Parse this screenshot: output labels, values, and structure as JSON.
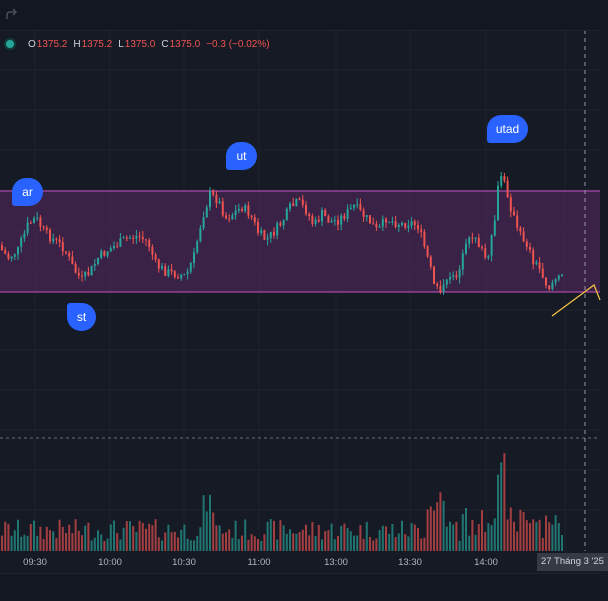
{
  "legend": {
    "o_key": "O",
    "o_val": "1375.2",
    "h_key": "H",
    "h_val": "1375.2",
    "l_key": "L",
    "l_val": "1375.0",
    "c_key": "C",
    "c_val": "1375.0",
    "change": "−0.3 (−0.02%)"
  },
  "labels": {
    "ar": "ar",
    "st": "st",
    "ut": "ut",
    "utad": "utad"
  },
  "time_axis": {
    "ticks": [
      "09:30",
      "10:00",
      "10:30",
      "11:00",
      "13:00",
      "13:30",
      "14:00"
    ],
    "crosshair_date": "27 Tháng 3 '25"
  },
  "colors": {
    "background": "#161a25",
    "up": "#26a69a",
    "down": "#ef5350",
    "range_fill": "#5a2a63",
    "range_border": "#c651c6",
    "label": "#2962ff",
    "projection": "#f5c542"
  },
  "icons": {
    "redo": "redo-icon",
    "status": "status-dot-icon"
  }
}
